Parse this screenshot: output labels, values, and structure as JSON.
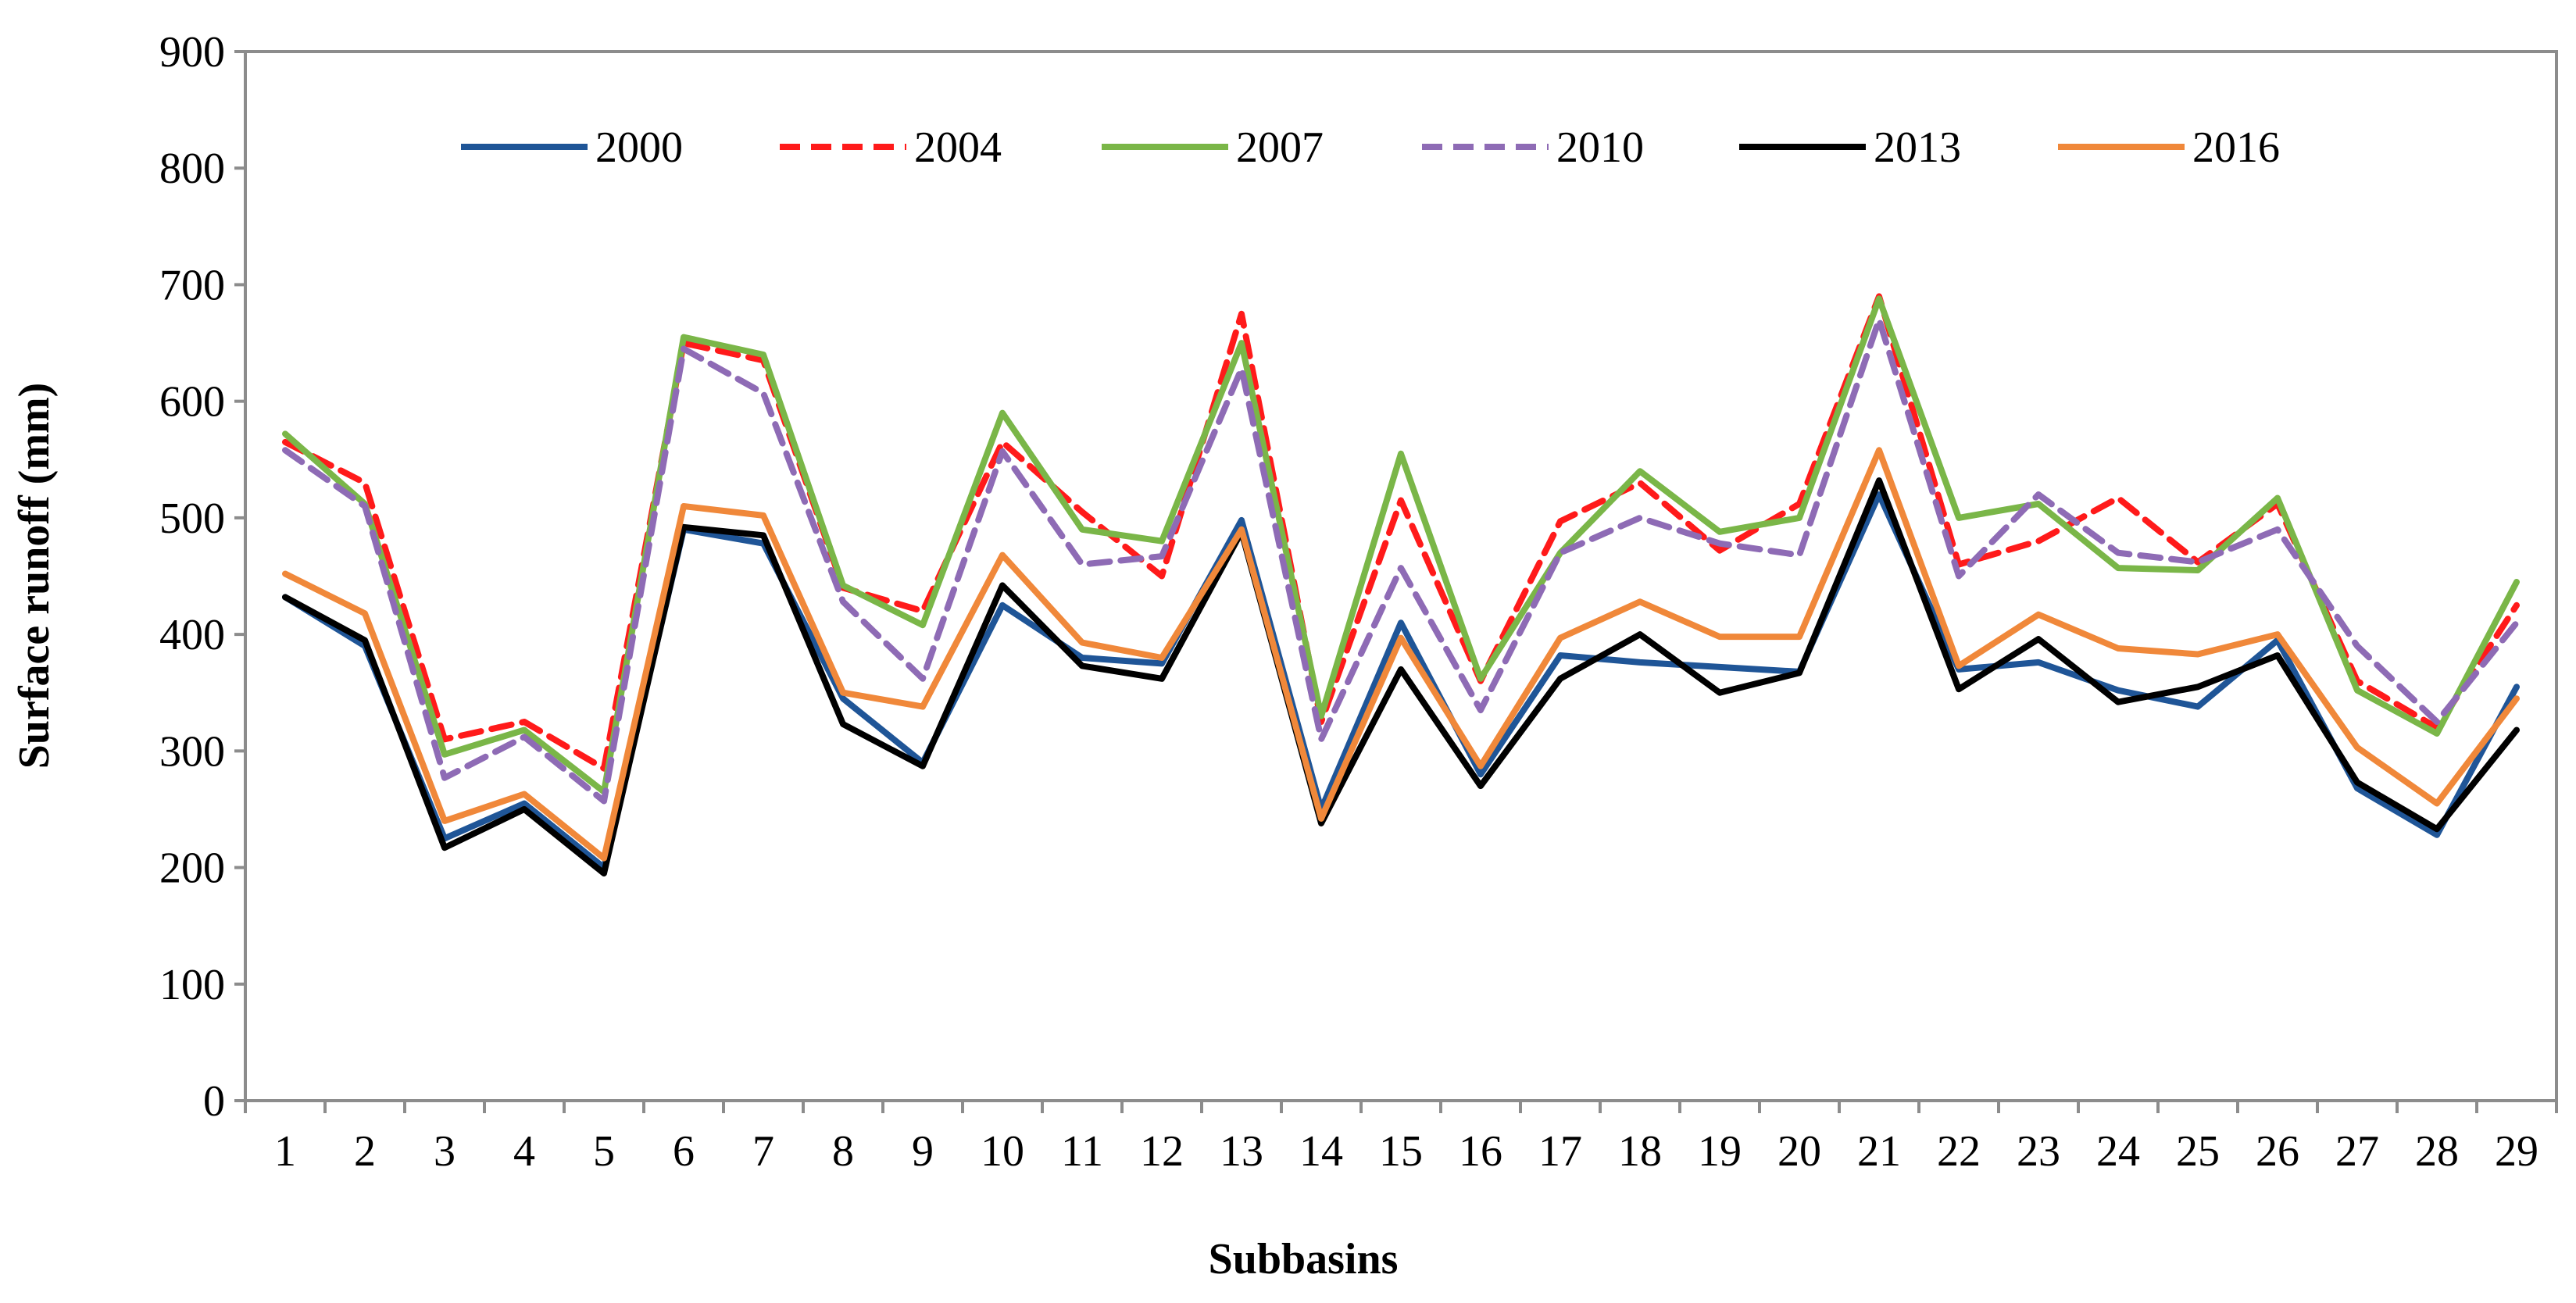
{
  "chart_data": {
    "type": "line",
    "title": "",
    "xlabel": "Subbasins",
    "ylabel": "Surface runoff (mm)",
    "ylim": [
      0,
      900
    ],
    "yticks": [
      0,
      100,
      200,
      300,
      400,
      500,
      600,
      700,
      800,
      900
    ],
    "grid": false,
    "legend_position": "top",
    "categories": [
      "1",
      "2",
      "3",
      "4",
      "5",
      "6",
      "7",
      "8",
      "9",
      "10",
      "11",
      "12",
      "13",
      "14",
      "15",
      "16",
      "17",
      "18",
      "19",
      "20",
      "21",
      "22",
      "23",
      "24",
      "25",
      "26",
      "27",
      "28",
      "29"
    ],
    "series": [
      {
        "name": "2000",
        "color": "#1f5597",
        "dash": "solid",
        "values": [
          432,
          390,
          225,
          255,
          200,
          490,
          478,
          345,
          290,
          425,
          380,
          375,
          498,
          250,
          410,
          280,
          382,
          376,
          372,
          368,
          520,
          370,
          376,
          352,
          338,
          395,
          268,
          228,
          355
        ]
      },
      {
        "name": "2004",
        "color": "#ff1a1a",
        "dash": "dashed",
        "values": [
          565,
          530,
          310,
          325,
          285,
          650,
          635,
          440,
          420,
          565,
          505,
          450,
          675,
          325,
          515,
          360,
          497,
          530,
          472,
          512,
          690,
          460,
          480,
          517,
          462,
          512,
          360,
          320,
          425
        ]
      },
      {
        "name": "2007",
        "color": "#7ab648",
        "dash": "solid",
        "values": [
          572,
          512,
          297,
          318,
          265,
          655,
          640,
          442,
          408,
          590,
          490,
          480,
          650,
          330,
          555,
          362,
          470,
          540,
          488,
          500,
          688,
          500,
          512,
          457,
          455,
          517,
          352,
          315,
          445
        ]
      },
      {
        "name": "2010",
        "color": "#8e6bb5",
        "dash": "dashed",
        "values": [
          558,
          510,
          277,
          312,
          257,
          645,
          607,
          428,
          362,
          557,
          460,
          467,
          628,
          310,
          457,
          335,
          470,
          500,
          478,
          468,
          670,
          450,
          520,
          470,
          462,
          490,
          390,
          325,
          410
        ]
      },
      {
        "name": "2013",
        "color": "#000000",
        "dash": "solid",
        "values": [
          432,
          395,
          217,
          250,
          195,
          492,
          485,
          323,
          287,
          442,
          373,
          362,
          488,
          238,
          370,
          270,
          362,
          400,
          350,
          367,
          532,
          353,
          396,
          342,
          355,
          382,
          273,
          233,
          318
        ]
      },
      {
        "name": "2016",
        "color": "#f0883a",
        "dash": "solid",
        "values": [
          452,
          418,
          240,
          263,
          208,
          510,
          502,
          350,
          338,
          468,
          393,
          380,
          490,
          242,
          397,
          287,
          397,
          428,
          398,
          398,
          558,
          373,
          417,
          388,
          383,
          400,
          303,
          255,
          345
        ]
      }
    ]
  }
}
